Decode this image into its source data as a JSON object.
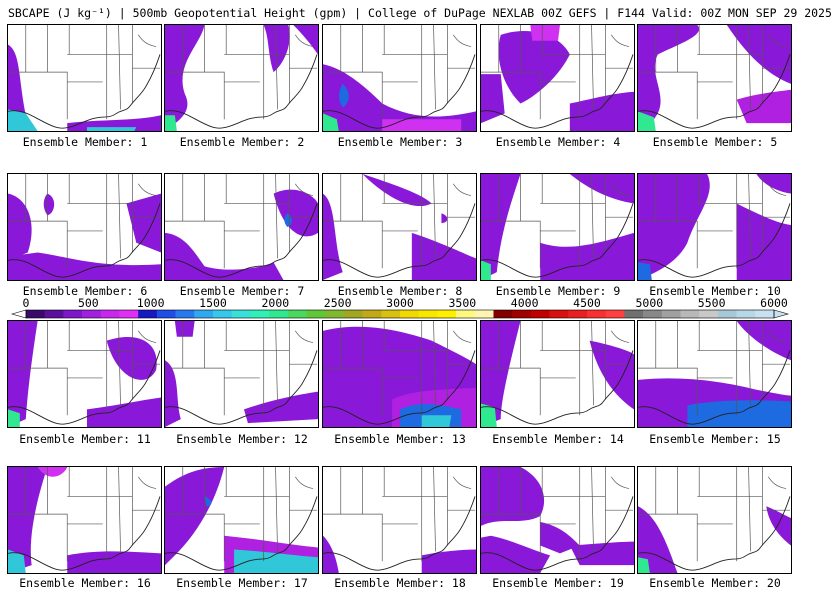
{
  "title": "SBCAPE (J kg⁻¹) | 500mb Geopotential Height (gpm) | College of DuPage NEXLAB 00Z GEFS | F144 Valid: 00Z MON SEP 29 2025",
  "colorbar": {
    "ticks": [
      "0",
      "500",
      "1000",
      "1500",
      "2000",
      "2500",
      "3000",
      "3500",
      "4000",
      "4500",
      "5000",
      "5500",
      "6000"
    ],
    "colors": [
      "#3a0a6a",
      "#5a109a",
      "#7d18c8",
      "#a020e0",
      "#c828ee",
      "#e030f4",
      "#1818c0",
      "#1e4ee6",
      "#2878f0",
      "#30a8f0",
      "#36c8e8",
      "#38e0d8",
      "#30f0b8",
      "#30e890",
      "#48d860",
      "#60c838",
      "#80b830",
      "#a0a820",
      "#c0a818",
      "#d8c010",
      "#f0d800",
      "#f8e800",
      "#fff000",
      "#fff880",
      "#fff4b0",
      "#800000",
      "#a00000",
      "#c00000",
      "#d81010",
      "#e82020",
      "#f83030",
      "#ff4040",
      "#707070",
      "#888888",
      "#a0a0a0",
      "#b8b8b8",
      "#c8c8c8",
      "#a8c8d8",
      "#b8d8e8",
      "#c8e0f0"
    ]
  },
  "panels": [
    {
      "label": "Ensemble Member: 1"
    },
    {
      "label": "Ensemble Member: 2"
    },
    {
      "label": "Ensemble Member: 3"
    },
    {
      "label": "Ensemble Member: 4"
    },
    {
      "label": "Ensemble Member: 5"
    },
    {
      "label": "Ensemble Member: 6"
    },
    {
      "label": "Ensemble Member: 7"
    },
    {
      "label": "Ensemble Member: 8"
    },
    {
      "label": "Ensemble Member: 9"
    },
    {
      "label": "Ensemble Member: 10"
    },
    {
      "label": "Ensemble Member: 11"
    },
    {
      "label": "Ensemble Member: 12"
    },
    {
      "label": "Ensemble Member: 13"
    },
    {
      "label": "Ensemble Member: 14"
    },
    {
      "label": "Ensemble Member: 15"
    },
    {
      "label": "Ensemble Member: 16"
    },
    {
      "label": "Ensemble Member: 17"
    },
    {
      "label": "Ensemble Member: 18"
    },
    {
      "label": "Ensemble Member: 19"
    },
    {
      "label": "Ensemble Member: 20"
    }
  ],
  "colors": {
    "cape_low": "#8a18d8",
    "cape_mid": "#b020e0",
    "cape_high": "#d030f0",
    "cape_blue": "#1e6ae0",
    "cape_cyan": "#30c8d8",
    "cape_green": "#30e890",
    "border": "#555555",
    "coast": "#222222"
  }
}
